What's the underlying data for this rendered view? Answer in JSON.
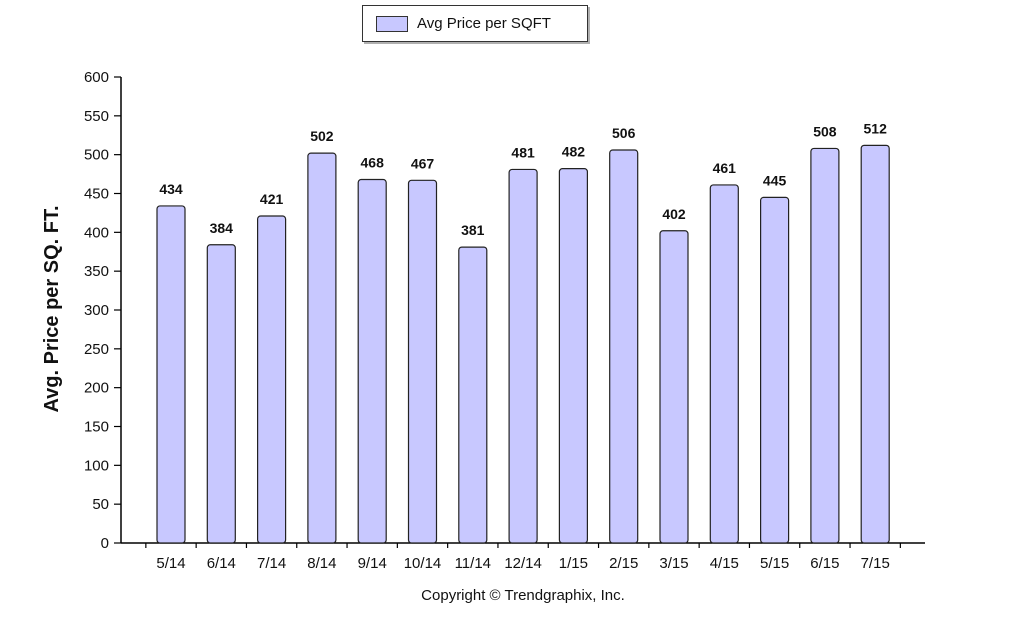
{
  "chart_data": {
    "type": "bar",
    "categories": [
      "5/14",
      "6/14",
      "7/14",
      "8/14",
      "9/14",
      "10/14",
      "11/14",
      "12/14",
      "1/15",
      "2/15",
      "3/15",
      "4/15",
      "5/15",
      "6/15",
      "7/15"
    ],
    "series": [
      {
        "name": "Avg Price per SQFT",
        "values": [
          434,
          384,
          421,
          502,
          468,
          467,
          381,
          481,
          482,
          506,
          402,
          461,
          445,
          508,
          512
        ]
      }
    ],
    "title": "",
    "xlabel": "",
    "ylabel": "Avg. Price per SQ. FT.",
    "ylim": [
      0,
      600
    ],
    "yticks": [
      0,
      50,
      100,
      150,
      200,
      250,
      300,
      350,
      400,
      450,
      500,
      550,
      600
    ],
    "data_labels": true,
    "grid": false,
    "legend_position": "top-center",
    "colors": {
      "bar_fill": "#c8c8ff",
      "bar_stroke": "#222222",
      "axis": "#000000",
      "text": "#111111"
    }
  },
  "footer": {
    "copyright": "Copyright © Trendgraphix, Inc."
  }
}
